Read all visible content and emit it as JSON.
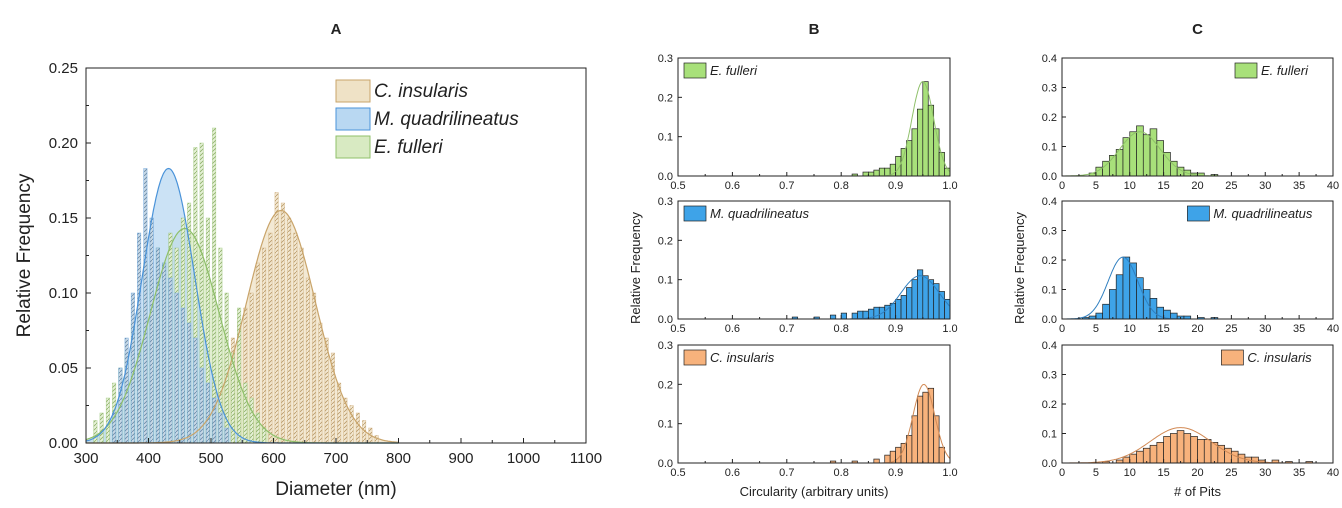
{
  "figure": {
    "panels": [
      "A",
      "B",
      "C"
    ]
  },
  "colors": {
    "c_insularis": "#c9a46a",
    "c_insularis_fill": "#efe2c6",
    "m_quadrilineatus": "#4a93d9",
    "m_quadrilineatus_fill": "#b9d8f2",
    "e_fulleri": "#8fc06a",
    "e_fulleri_fill": "#d8eac2",
    "b_green": "#a8e07a",
    "b_blue": "#3ea3e8",
    "b_orange": "#f7b27c"
  },
  "chart_data": [
    {
      "panel": "A",
      "type": "bar",
      "title": "A",
      "xlabel": "Diameter (nm)",
      "ylabel": "Relative Frequency",
      "xlim": [
        300,
        1100
      ],
      "ylim": [
        0,
        0.25
      ],
      "xticks": [
        "300",
        "400",
        "500",
        "600",
        "700",
        "800",
        "900",
        "1000",
        "1100"
      ],
      "yticks": [
        "0.00",
        "0.05",
        "0.10",
        "0.15",
        "0.20",
        "0.25"
      ],
      "bin_width": 10,
      "legend": {
        "position": "top-right",
        "entries": [
          "C. insularis",
          "M. quadrilineatus",
          "E. fulleri"
        ]
      },
      "series": [
        {
          "name": "C. insularis",
          "bins": [
            480,
            490,
            500,
            510,
            520,
            530,
            540,
            550,
            560,
            570,
            580,
            590,
            600,
            610,
            620,
            630,
            640,
            650,
            660,
            670,
            680,
            690,
            700,
            710,
            720,
            730,
            740,
            750,
            760
          ],
          "values": [
            0.02,
            0.03,
            0.04,
            0.05,
            0.06,
            0.07,
            0.08,
            0.09,
            0.1,
            0.12,
            0.13,
            0.14,
            0.167,
            0.16,
            0.15,
            0.14,
            0.13,
            0.11,
            0.1,
            0.08,
            0.07,
            0.06,
            0.04,
            0.03,
            0.025,
            0.02,
            0.015,
            0.01,
            0.005
          ],
          "fit": {
            "mean": 612,
            "sd": 55,
            "peak": 0.155
          }
        },
        {
          "name": "M. quadrilineatus",
          "bins": [
            340,
            350,
            360,
            370,
            380,
            390,
            400,
            410,
            420,
            430,
            440,
            450,
            460,
            470,
            480,
            490,
            500,
            510,
            520
          ],
          "values": [
            0.02,
            0.05,
            0.07,
            0.1,
            0.14,
            0.183,
            0.15,
            0.13,
            0.12,
            0.11,
            0.1,
            0.09,
            0.08,
            0.07,
            0.05,
            0.04,
            0.03,
            0.02,
            0.01
          ],
          "fit": {
            "mean": 432,
            "sd": 42,
            "peak": 0.183
          }
        },
        {
          "name": "E. fulleri",
          "bins": [
            310,
            320,
            330,
            340,
            350,
            360,
            370,
            380,
            390,
            400,
            410,
            420,
            430,
            440,
            450,
            460,
            470,
            480,
            490,
            500,
            510,
            520,
            530,
            540,
            550,
            560,
            570,
            580
          ],
          "values": [
            0.015,
            0.02,
            0.03,
            0.04,
            0.05,
            0.06,
            0.08,
            0.09,
            0.12,
            0.11,
            0.13,
            0.12,
            0.14,
            0.13,
            0.15,
            0.16,
            0.197,
            0.2,
            0.15,
            0.21,
            0.13,
            0.1,
            0.06,
            0.09,
            0.04,
            0.03,
            0.02,
            0.01
          ],
          "fit": {
            "mean": 458,
            "sd": 55,
            "peak": 0.143
          }
        }
      ]
    },
    {
      "panel": "B",
      "type": "bar",
      "title": "B",
      "xlabel": "Circularity (arbitrary units)",
      "ylabel": "Relative Frequency",
      "xlim": [
        0.5,
        1.0
      ],
      "ylim": [
        0,
        0.3
      ],
      "xticks": [
        "0.5",
        "0.6",
        "0.7",
        "0.8",
        "0.9",
        "1.0"
      ],
      "yticks": [
        "0.0",
        "0.1",
        "0.2",
        "0.3"
      ],
      "bin_width": 0.01,
      "subplots": [
        {
          "name": "E. fulleri",
          "legend_position": "top-left",
          "bins": [
            0.82,
            0.84,
            0.85,
            0.86,
            0.87,
            0.88,
            0.89,
            0.9,
            0.91,
            0.92,
            0.93,
            0.94,
            0.95,
            0.96,
            0.97,
            0.98,
            0.99
          ],
          "values": [
            0.005,
            0.01,
            0.01,
            0.015,
            0.02,
            0.02,
            0.03,
            0.05,
            0.07,
            0.09,
            0.12,
            0.17,
            0.24,
            0.18,
            0.12,
            0.06,
            0.02
          ],
          "fit": {
            "mean": 0.95,
            "sd": 0.02,
            "peak": 0.24
          }
        },
        {
          "name": "M. quadrilineatus",
          "legend_position": "top-left",
          "bins": [
            0.71,
            0.75,
            0.78,
            0.8,
            0.82,
            0.83,
            0.84,
            0.85,
            0.86,
            0.87,
            0.88,
            0.89,
            0.9,
            0.91,
            0.92,
            0.93,
            0.94,
            0.95,
            0.96,
            0.97,
            0.98,
            0.99
          ],
          "values": [
            0.005,
            0.005,
            0.01,
            0.015,
            0.015,
            0.02,
            0.02,
            0.025,
            0.03,
            0.03,
            0.035,
            0.04,
            0.05,
            0.06,
            0.08,
            0.1,
            0.125,
            0.11,
            0.1,
            0.09,
            0.07,
            0.05
          ],
          "fit": {
            "mean": 0.945,
            "sd": 0.035,
            "peak": 0.11
          }
        },
        {
          "name": "C. insularis",
          "legend_position": "top-left",
          "bins": [
            0.78,
            0.82,
            0.86,
            0.88,
            0.89,
            0.9,
            0.91,
            0.92,
            0.93,
            0.94,
            0.95,
            0.96,
            0.97,
            0.98
          ],
          "values": [
            0.005,
            0.005,
            0.01,
            0.02,
            0.03,
            0.04,
            0.05,
            0.07,
            0.12,
            0.17,
            0.18,
            0.19,
            0.12,
            0.04
          ],
          "fit": {
            "mean": 0.952,
            "sd": 0.02,
            "peak": 0.2
          }
        }
      ]
    },
    {
      "panel": "C",
      "type": "bar",
      "title": "C",
      "xlabel": "# of Pits",
      "ylabel": "Relative Frequency",
      "xlim": [
        0,
        40
      ],
      "ylim": [
        0,
        0.4
      ],
      "xticks": [
        "0",
        "5",
        "10",
        "15",
        "20",
        "25",
        "30",
        "35",
        "40"
      ],
      "yticks": [
        "0.0",
        "0.1",
        "0.2",
        "0.3",
        "0.4"
      ],
      "bin_width": 1,
      "subplots": [
        {
          "name": "E. fulleri",
          "legend_position": "top-right",
          "bins": [
            4,
            5,
            6,
            7,
            8,
            9,
            10,
            11,
            12,
            13,
            14,
            15,
            16,
            17,
            18,
            19,
            20,
            22
          ],
          "values": [
            0.01,
            0.03,
            0.05,
            0.07,
            0.09,
            0.13,
            0.15,
            0.17,
            0.14,
            0.16,
            0.12,
            0.08,
            0.05,
            0.03,
            0.02,
            0.01,
            0.01,
            0.005
          ],
          "fit": {
            "mean": 11.5,
            "sd": 3.0,
            "peak": 0.15
          }
        },
        {
          "name": "M. quadrilineatus",
          "legend_position": "top-right",
          "bins": [
            3,
            4,
            5,
            6,
            7,
            8,
            9,
            10,
            11,
            12,
            13,
            14,
            15,
            16,
            17,
            18,
            20,
            22
          ],
          "values": [
            0.005,
            0.01,
            0.02,
            0.05,
            0.1,
            0.15,
            0.21,
            0.19,
            0.14,
            0.1,
            0.07,
            0.04,
            0.03,
            0.02,
            0.01,
            0.01,
            0.005,
            0.005
          ],
          "fit": {
            "mean": 9.0,
            "sd": 2.2,
            "peak": 0.21
          }
        },
        {
          "name": "C. insularis",
          "legend_position": "top-right",
          "bins": [
            6,
            8,
            9,
            10,
            11,
            12,
            13,
            14,
            15,
            16,
            17,
            18,
            19,
            20,
            21,
            22,
            23,
            24,
            25,
            26,
            27,
            28,
            29,
            31,
            33,
            36
          ],
          "values": [
            0.005,
            0.01,
            0.02,
            0.03,
            0.04,
            0.05,
            0.06,
            0.07,
            0.09,
            0.1,
            0.11,
            0.1,
            0.09,
            0.08,
            0.08,
            0.07,
            0.06,
            0.05,
            0.04,
            0.03,
            0.02,
            0.02,
            0.01,
            0.01,
            0.005,
            0.005
          ],
          "fit": {
            "mean": 17.5,
            "sd": 4.5,
            "peak": 0.12
          }
        }
      ]
    }
  ]
}
